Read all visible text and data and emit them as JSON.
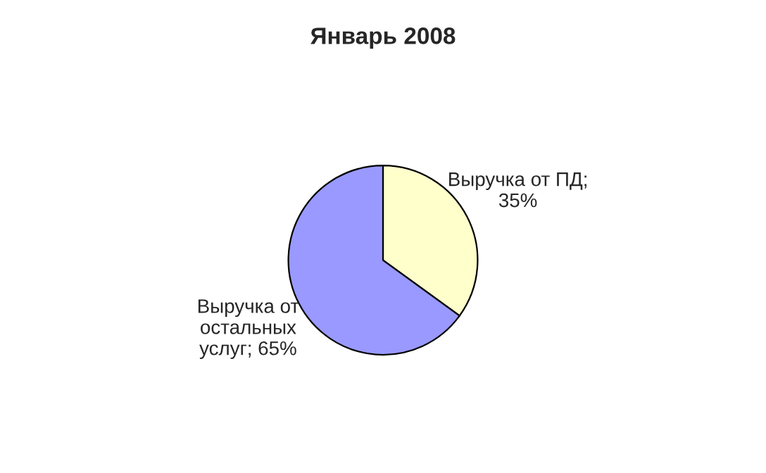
{
  "chart_data": {
    "type": "pie",
    "title": "Январь 2008",
    "categories": [
      "Выручка от ПД;\n35%",
      "Выручка от\nостальных\nуслуг; 65%"
    ],
    "values": [
      35,
      65
    ],
    "colors": [
      "#ffffcc",
      "#9999ff"
    ],
    "legend": false
  }
}
